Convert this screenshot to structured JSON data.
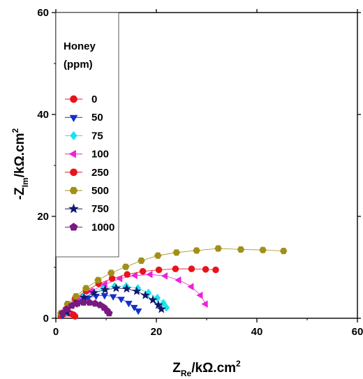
{
  "chart_data": {
    "type": "scatter",
    "xlim": [
      0,
      60
    ],
    "ylim": [
      0,
      60
    ],
    "xticks": [
      "0",
      "20",
      "40",
      "60"
    ],
    "yticks": [
      "0",
      "20",
      "40",
      "60"
    ],
    "xlabel": {
      "main": "Z",
      "sub": "Re",
      "unit": "/kΩ.cm",
      "sup": "2"
    },
    "ylabel": {
      "main": "-Z",
      "sub": "Im",
      "unit": "/kΩ.cm",
      "sup": "2"
    },
    "legend": {
      "title_line1": "Honey",
      "title_line2": "(ppm)",
      "placement": "top-left"
    },
    "series": [
      {
        "name": "0",
        "marker": "circle",
        "color": "#e8141c",
        "x": [
          1.0,
          1.5,
          2.0,
          2.5,
          3.0,
          3.5,
          3.8
        ],
        "y": [
          0.5,
          0.8,
          1.0,
          1.0,
          0.9,
          0.7,
          0.4
        ]
      },
      {
        "name": "50",
        "marker": "triangle-down",
        "color": "#1530c8",
        "x": [
          1.3,
          2.2,
          3.4,
          4.8,
          6.4,
          8.0,
          9.7,
          11.4,
          13.0,
          14.5,
          15.6,
          16.4
        ],
        "y": [
          0.6,
          1.6,
          2.6,
          3.4,
          4.0,
          4.4,
          4.5,
          4.3,
          3.8,
          3.0,
          2.2,
          1.5
        ]
      },
      {
        "name": "75",
        "marker": "diamond",
        "color": "#18e4f0",
        "x": [
          2.0,
          3.5,
          5.2,
          7.2,
          9.4,
          11.7,
          14.0,
          16.3,
          18.4,
          20.2,
          21.4,
          22.0
        ],
        "y": [
          1.2,
          2.8,
          4.2,
          5.2,
          5.9,
          6.3,
          6.3,
          5.9,
          5.0,
          4.0,
          3.0,
          2.1
        ]
      },
      {
        "name": "100",
        "marker": "triangle-left",
        "color": "#ee20d8",
        "x": [
          2.5,
          4.5,
          7.0,
          9.8,
          12.8,
          15.8,
          18.8,
          21.8,
          24.5,
          27.0,
          28.8,
          29.8
        ],
        "y": [
          1.5,
          3.5,
          5.3,
          6.7,
          7.8,
          8.4,
          8.6,
          8.3,
          7.5,
          6.2,
          4.5,
          2.8
        ]
      },
      {
        "name": "250",
        "marker": "circle",
        "color": "#e8141c",
        "x": [
          2.0,
          3.8,
          6.0,
          8.5,
          11.2,
          14.2,
          17.3,
          20.5,
          23.8,
          27.0,
          29.8,
          31.8
        ],
        "y": [
          1.8,
          3.8,
          5.4,
          6.8,
          7.8,
          8.6,
          9.2,
          9.5,
          9.7,
          9.7,
          9.6,
          9.5
        ]
      },
      {
        "name": "500",
        "marker": "hexagon",
        "color": "#a09018",
        "x": [
          1.0,
          2.3,
          4.0,
          6.0,
          8.4,
          11.0,
          13.9,
          17.0,
          20.3,
          24.0,
          28.0,
          32.3,
          36.8,
          41.2,
          45.3
        ],
        "y": [
          1.0,
          2.8,
          4.3,
          5.9,
          7.5,
          8.9,
          10.1,
          11.3,
          12.3,
          12.9,
          13.3,
          13.7,
          13.5,
          13.4,
          13.2
        ]
      },
      {
        "name": "750",
        "marker": "star",
        "color": "#10186a",
        "x": [
          2.2,
          3.8,
          5.6,
          7.6,
          9.8,
          12.0,
          14.1,
          16.1,
          17.8,
          19.3,
          20.4,
          21.0
        ],
        "y": [
          1.2,
          2.8,
          4.1,
          5.0,
          5.6,
          5.9,
          5.8,
          5.3,
          4.5,
          3.6,
          2.6,
          1.8
        ]
      },
      {
        "name": "1000",
        "marker": "pentagon",
        "color": "#781a80",
        "x": [
          1.3,
          2.2,
          3.2,
          4.3,
          5.5,
          6.7,
          7.8,
          8.8,
          9.6,
          10.2,
          10.6
        ],
        "y": [
          1.0,
          1.8,
          2.5,
          2.9,
          3.1,
          3.1,
          2.9,
          2.6,
          2.1,
          1.5,
          1.0
        ]
      }
    ]
  }
}
